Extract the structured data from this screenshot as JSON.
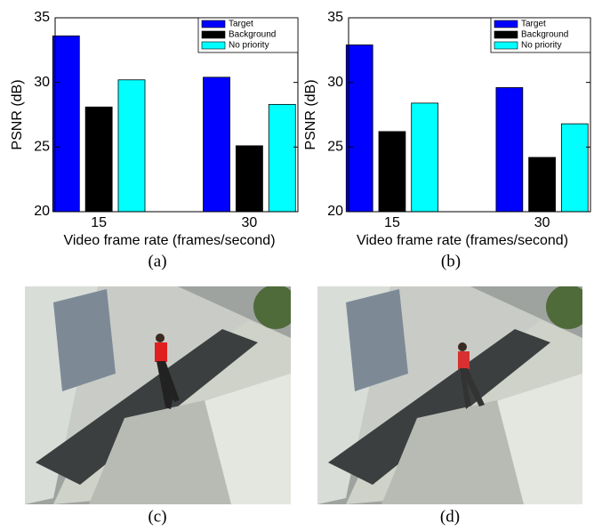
{
  "chart_data": [
    {
      "type": "bar",
      "ylabel": "PSNR (dB)",
      "xlabel": "Video frame rate (frames/second)",
      "categories": [
        "15",
        "30"
      ],
      "series": [
        {
          "name": "Target",
          "color": "#0000ff",
          "values": [
            33.6,
            30.4
          ]
        },
        {
          "name": "Background",
          "color": "#000000",
          "values": [
            28.1,
            25.1
          ]
        },
        {
          "name": "No priority",
          "color": "#00ffff",
          "values": [
            30.2,
            28.3
          ]
        }
      ],
      "ylim": [
        20,
        35
      ],
      "yticks": [
        20,
        25,
        30,
        35
      ],
      "legend": "upper right"
    },
    {
      "type": "bar",
      "ylabel": "PSNR (dB)",
      "xlabel": "Video frame rate (frames/second)",
      "categories": [
        "15",
        "30"
      ],
      "series": [
        {
          "name": "Target",
          "color": "#0000ff",
          "values": [
            32.9,
            29.6
          ]
        },
        {
          "name": "Background",
          "color": "#000000",
          "values": [
            26.2,
            24.2
          ]
        },
        {
          "name": "No priority",
          "color": "#00ffff",
          "values": [
            28.4,
            26.8
          ]
        }
      ],
      "ylim": [
        20,
        35
      ],
      "yticks": [
        20,
        25,
        30,
        35
      ],
      "legend": "upper right"
    }
  ],
  "figure": {
    "captions": [
      "(a)",
      "(b)",
      "(c)",
      "(d)"
    ]
  }
}
